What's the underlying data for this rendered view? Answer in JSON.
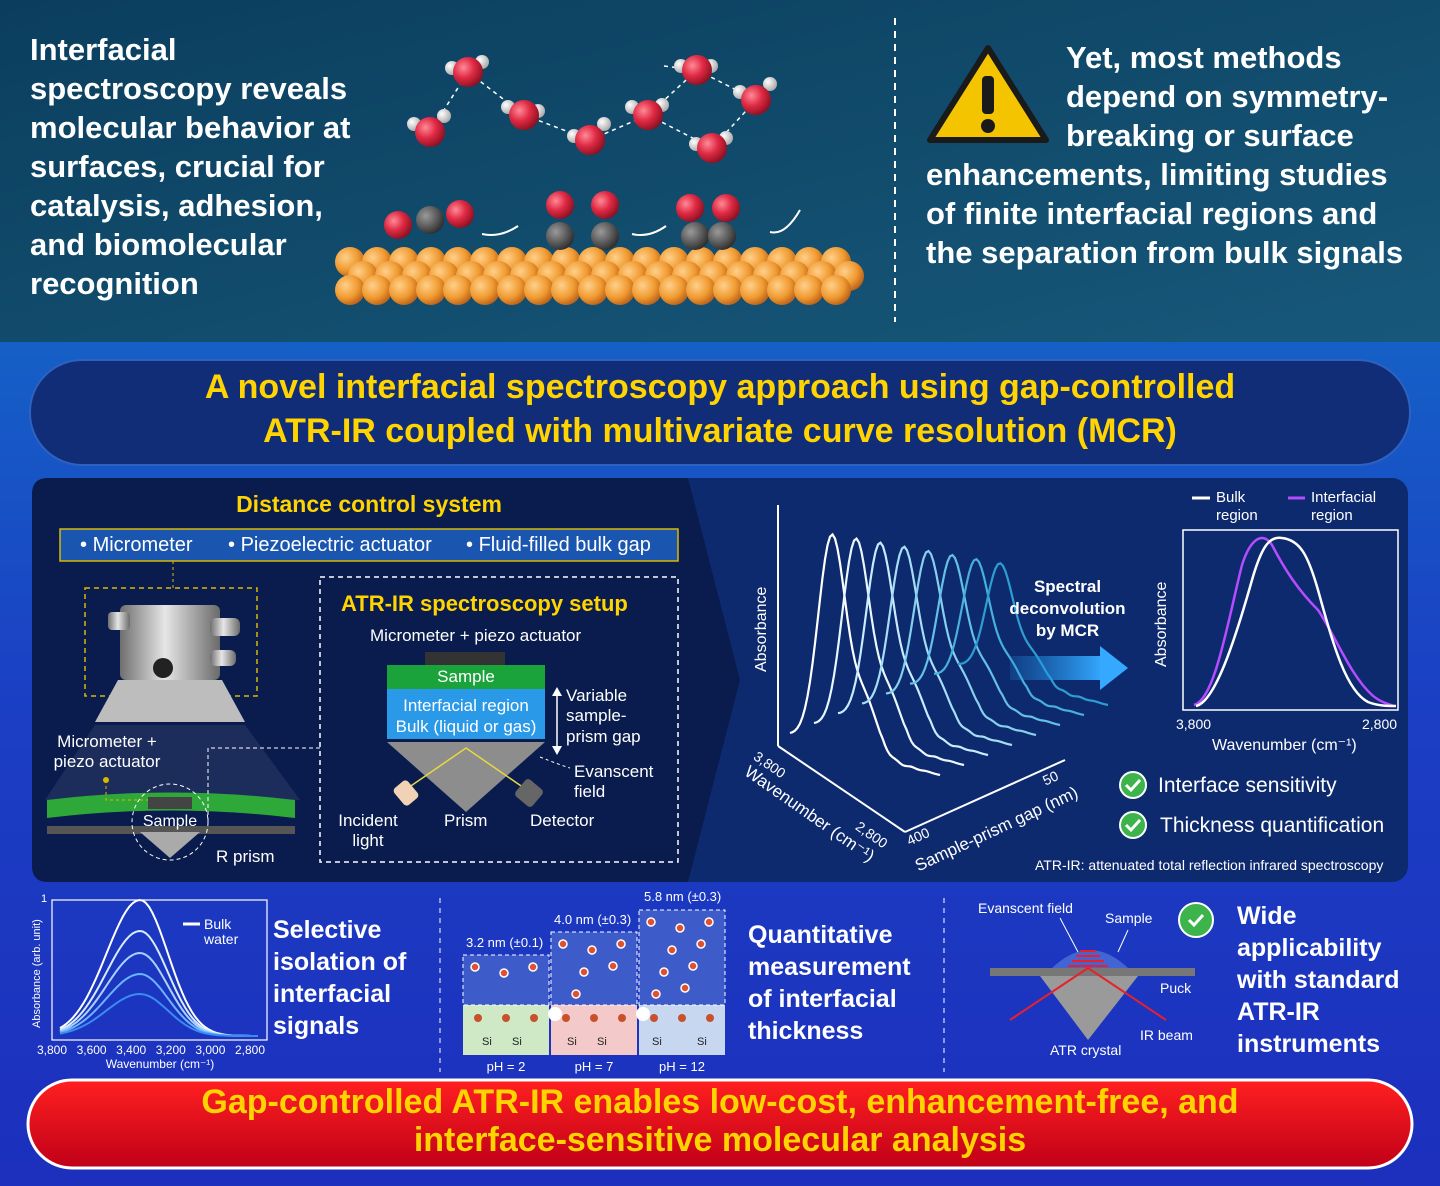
{
  "top": {
    "intro": "Interfacial spectroscopy reveals molecular behavior at surfaces, crucial for catalysis, adhesion, and biomolecular recognition",
    "limitation": "Yet, most methods depend on symmetry-breaking or surface enhancements, limiting studies of finite interfacial regions and the separation from bulk signals"
  },
  "banner": {
    "lines": [
      "A novel interfacial spectroscopy approach using gap-controlled",
      "ATR-IR coupled with multivariate curve resolution (MCR)"
    ]
  },
  "distance_control": {
    "title": "Distance control system",
    "items": [
      "Micrometer",
      "Piezoelectric actuator",
      "Fluid-filled bulk gap"
    ],
    "device_label": "Micrometer + piezo actuator",
    "sample": "Sample",
    "prism": "R prism"
  },
  "atr_setup": {
    "title": "ATR-IR spectroscopy setup",
    "actuator": "Micrometer + piezo actuator",
    "sample": "Sample",
    "interfacial": "Interfacial region",
    "bulk": "Bulk (liquid or gas)",
    "gap": "Variable sample-prism gap",
    "field": "Evanscent field",
    "incident": "Incident light",
    "prism": "Prism",
    "detector": "Detector"
  },
  "plot_3d": {
    "y_label": "Absorbance",
    "x_ticks": [
      "3,800",
      "2,800"
    ],
    "x_label": "Wavenumber (cm⁻¹)",
    "z_ticks": [
      "400",
      "50"
    ],
    "z_label": "Sample-prism gap (nm)"
  },
  "mcr": "Spectral deconvolution by MCR",
  "result_plot": {
    "legend": [
      "Bulk region",
      "Interfacial region"
    ],
    "y_label": "Absorbance",
    "x_ticks": [
      "3,800",
      "2,800"
    ],
    "x_label": "Wavenumber (cm⁻¹)"
  },
  "features": [
    "Interface sensitivity",
    "Thickness quantification"
  ],
  "footnote": "ATR-IR: attenuated total reflection infrared spectroscopy",
  "panel_isolation": {
    "plot": {
      "y_top": "1",
      "y_label": "Absorbance (arb. unit)",
      "legend": "Bulk water",
      "x_ticks": [
        "3,800",
        "3,600",
        "3,400",
        "3,200",
        "3,000",
        "2,800"
      ],
      "x_label": "Wavenumber (cm⁻¹)"
    },
    "text": "Selective isolation of interfacial signals"
  },
  "panel_thickness": {
    "thicknesses": [
      "3.2 nm (±0.1)",
      "4.0 nm (±0.3)",
      "5.8 nm (±0.3)"
    ],
    "ph": [
      "pH = 2",
      "pH = 7",
      "pH = 12"
    ],
    "si": [
      "Si",
      "Si",
      "Si",
      "Si",
      "Si",
      "Si"
    ],
    "text": "Quantitative measurement of interfacial thickness"
  },
  "panel_applicability": {
    "field": "Evanscent field",
    "sample": "Sample",
    "puck": "Puck",
    "beam": "IR beam",
    "crystal": "ATR crystal",
    "text": "Wide applicability with standard ATR-IR instruments"
  },
  "conclusion": {
    "lines": [
      "Gap-controlled ATR-IR enables low-cost, enhancement-free, and",
      "interface-sensitive molecular analysis"
    ]
  }
}
